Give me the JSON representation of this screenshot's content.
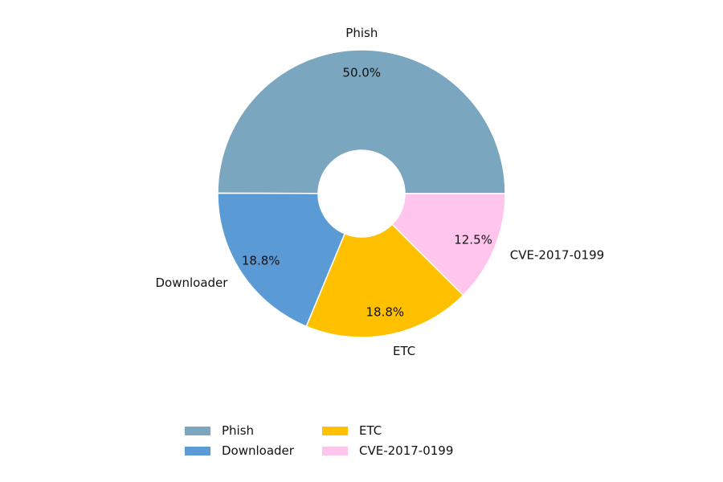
{
  "chart_data": {
    "type": "pie",
    "donut": true,
    "title": "",
    "categories": [
      "Phish",
      "Downloader",
      "ETC",
      "CVE-2017-0199"
    ],
    "values": [
      50.0,
      18.8,
      18.8,
      12.5
    ],
    "percent_labels": [
      "50.0%",
      "18.8%",
      "18.8%",
      "12.5%"
    ],
    "colors": [
      "#7aa6bf",
      "#5b9bd5",
      "#ffc000",
      "#ffc5ec"
    ],
    "start_angle_deg": 0,
    "direction": "counterclockwise",
    "legend": {
      "placement": "bottom-center",
      "columns": 3,
      "entries": [
        "Phish",
        "Downloader",
        "ETC",
        "CVE-2017-0199"
      ]
    }
  }
}
